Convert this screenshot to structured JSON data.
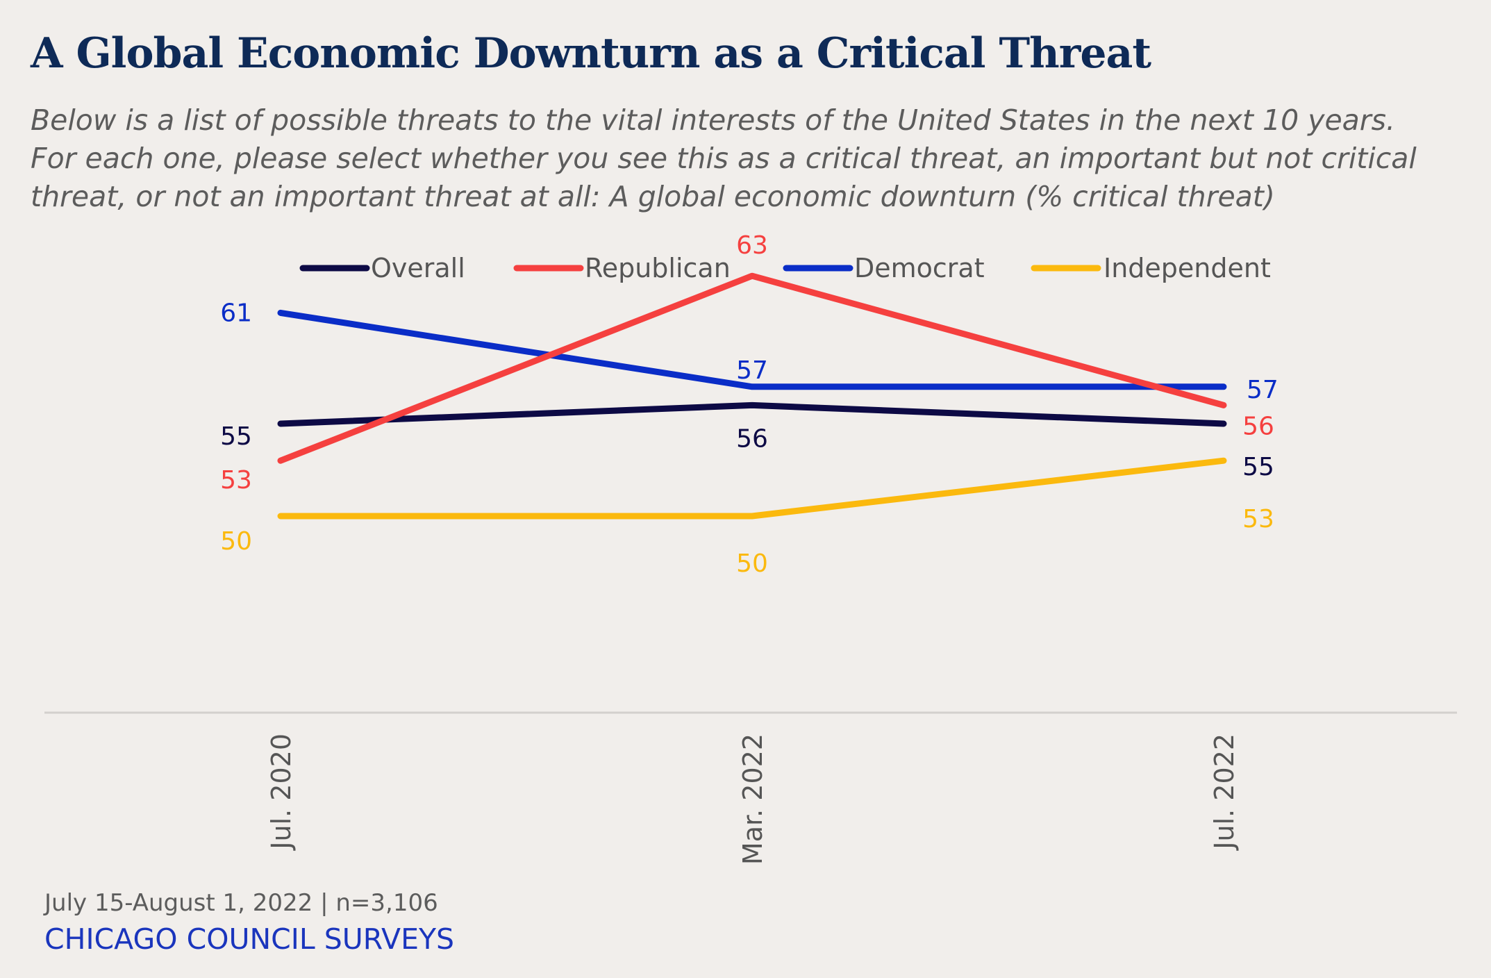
{
  "title": "A Global Economic Downturn as a Critical Threat",
  "subtitle": "Below is a list of possible threats to the vital interests of the United States in the next 10 years. For each one, please select whether you see this as a critical threat, an important but not critical threat, or not an important threat at all: A global economic downturn (% critical threat)",
  "footer": {
    "note": "July 15-August 1, 2022 | n=3,106",
    "brand": "CHICAGO COUNCIL SURVEYS"
  },
  "colors": {
    "background": "#f1eeeb",
    "title": "#0e2a57",
    "brand": "#1a35bd"
  },
  "chart_data": {
    "type": "line",
    "x": [
      "Jul. 2020",
      "Mar. 2022",
      "Jul. 2022"
    ],
    "ylim": [
      30,
      75
    ],
    "grid": false,
    "legend_position": "top-center",
    "series": [
      {
        "name": "Overall",
        "color": "#0d0a45",
        "values": [
          55,
          56,
          55
        ]
      },
      {
        "name": "Republican",
        "color": "#f5403f",
        "values": [
          53,
          63,
          56
        ]
      },
      {
        "name": "Democrat",
        "color": "#0a2dc7",
        "values": [
          61,
          57,
          57
        ]
      },
      {
        "name": "Independent",
        "color": "#fbb90e",
        "values": [
          50,
          50,
          53
        ]
      }
    ]
  }
}
